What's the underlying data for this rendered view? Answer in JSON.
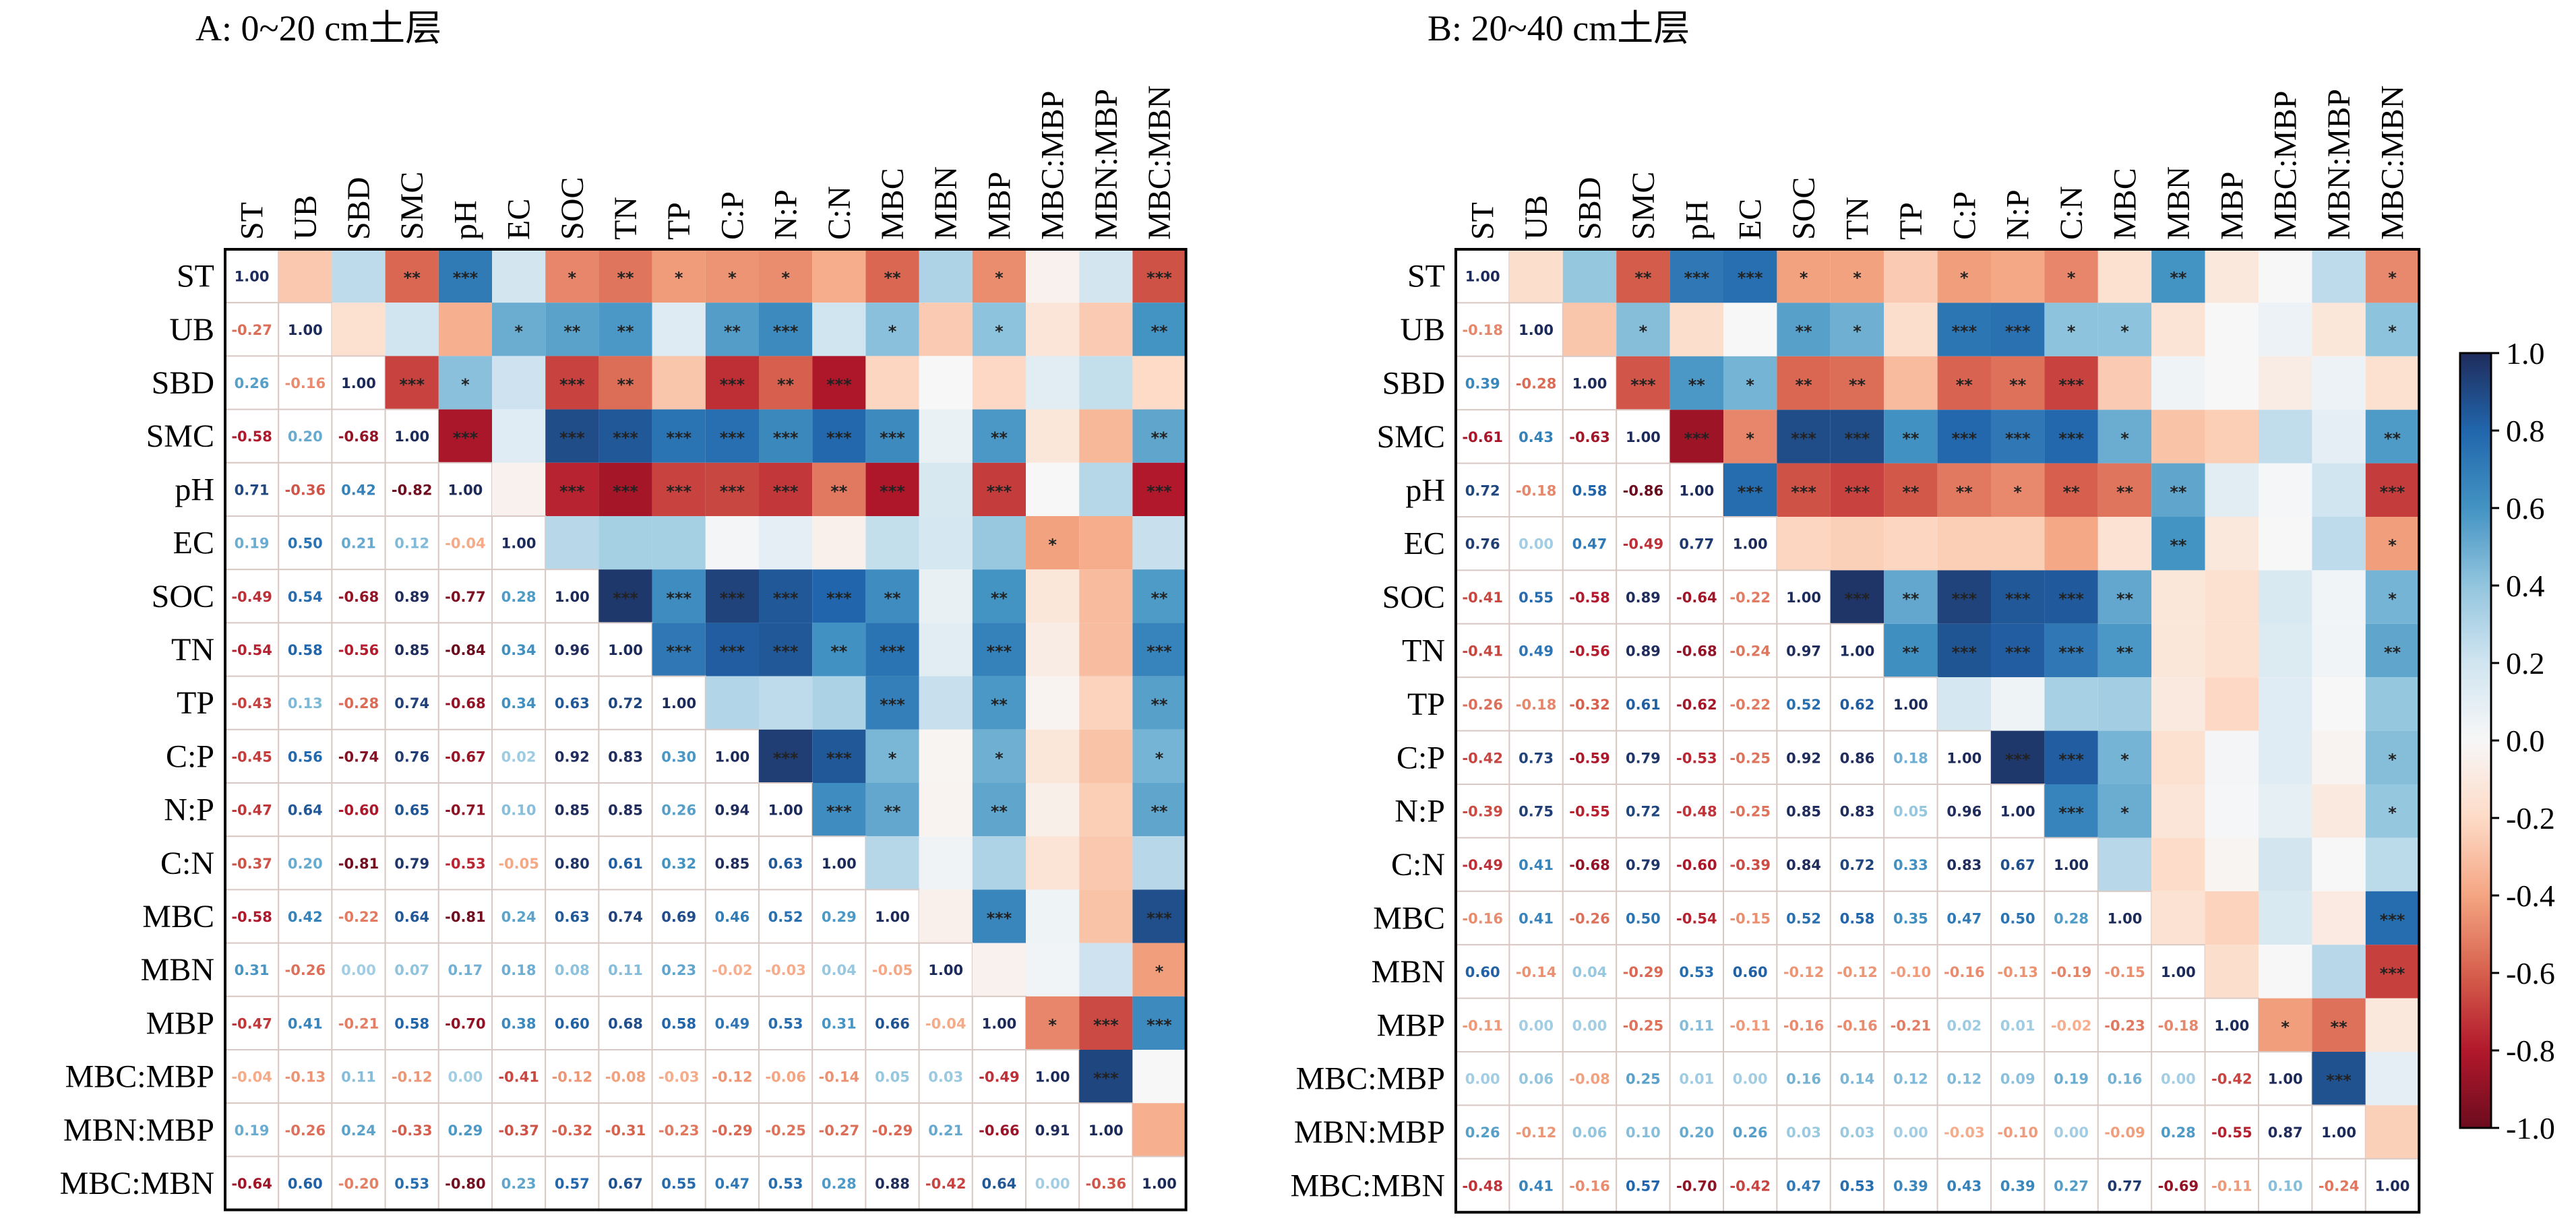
{
  "chart_data": [
    {
      "type": "heatmap",
      "title": "A: 0~20 cm土层",
      "variables": [
        "ST",
        "UB",
        "SBD",
        "SMC",
        "pH",
        "EC",
        "SOC",
        "TN",
        "TP",
        "C:P",
        "N:P",
        "C:N",
        "MBC",
        "MBN",
        "MBP",
        "MBC:MBP",
        "MBN:MBP",
        "MBC:MBN"
      ],
      "lower_triangle_values": [
        [
          1.0
        ],
        [
          -0.27,
          1.0
        ],
        [
          0.26,
          -0.16,
          1.0
        ],
        [
          -0.58,
          0.2,
          -0.68,
          1.0
        ],
        [
          0.71,
          -0.36,
          0.42,
          -0.82,
          1.0
        ],
        [
          0.19,
          0.5,
          0.21,
          0.12,
          -0.04,
          1.0
        ],
        [
          -0.49,
          0.54,
          -0.68,
          0.89,
          -0.77,
          0.28,
          1.0
        ],
        [
          -0.54,
          0.58,
          -0.56,
          0.85,
          -0.84,
          0.34,
          0.96,
          1.0
        ],
        [
          -0.43,
          0.13,
          -0.28,
          0.74,
          -0.68,
          0.34,
          0.63,
          0.72,
          1.0
        ],
        [
          -0.45,
          0.56,
          -0.74,
          0.76,
          -0.67,
          0.02,
          0.92,
          0.83,
          0.3,
          1.0
        ],
        [
          -0.47,
          0.64,
          -0.6,
          0.65,
          -0.71,
          0.1,
          0.85,
          0.85,
          0.26,
          0.94,
          1.0
        ],
        [
          -0.37,
          0.2,
          -0.81,
          0.79,
          -0.53,
          -0.05,
          0.8,
          0.61,
          0.32,
          0.85,
          0.63,
          1.0
        ],
        [
          -0.58,
          0.42,
          -0.22,
          0.64,
          -0.81,
          0.24,
          0.63,
          0.74,
          0.69,
          0.46,
          0.52,
          0.29,
          1.0
        ],
        [
          0.31,
          -0.26,
          0.0,
          0.07,
          0.17,
          0.18,
          0.08,
          0.11,
          0.23,
          -0.02,
          -0.03,
          0.04,
          -0.05,
          1.0
        ],
        [
          -0.47,
          0.41,
          -0.21,
          0.58,
          -0.7,
          0.38,
          0.6,
          0.68,
          0.58,
          0.49,
          0.53,
          0.31,
          0.66,
          -0.04,
          1.0
        ],
        [
          -0.04,
          -0.13,
          0.11,
          -0.12,
          0.0,
          -0.41,
          -0.12,
          -0.08,
          -0.03,
          -0.12,
          -0.06,
          -0.14,
          0.05,
          0.03,
          -0.49,
          1.0
        ],
        [
          0.19,
          -0.26,
          0.24,
          -0.33,
          0.29,
          -0.37,
          -0.32,
          -0.31,
          -0.23,
          -0.29,
          -0.25,
          -0.27,
          -0.29,
          0.21,
          -0.66,
          0.91,
          1.0
        ],
        [
          -0.64,
          0.6,
          -0.2,
          0.53,
          -0.8,
          0.23,
          0.57,
          0.67,
          0.55,
          0.47,
          0.53,
          0.28,
          0.88,
          -0.42,
          0.64,
          0.0,
          -0.36,
          1.0
        ]
      ],
      "upper_triangle_significance": [
        [
          "",
          "",
          "**",
          "***",
          "",
          "*",
          "**",
          "*",
          "*",
          "*",
          "",
          "**",
          "",
          "*",
          "",
          "",
          "***"
        ],
        [
          "",
          "",
          "",
          "*",
          "**",
          "**",
          "",
          "**",
          "***",
          "",
          "*",
          "",
          "*",
          "",
          "",
          "**"
        ],
        [
          "***",
          "*",
          "",
          "***",
          "**",
          "",
          "***",
          "**",
          "***",
          "",
          "",
          "",
          "",
          "",
          ""
        ],
        [
          "***",
          "",
          "***",
          "***",
          "***",
          "***",
          "***",
          "***",
          "***",
          "",
          "**",
          "",
          "",
          "**"
        ],
        [
          "",
          "***",
          "***",
          "***",
          "***",
          "***",
          "**",
          "***",
          "",
          "***",
          "",
          "",
          "***"
        ],
        [
          "",
          "",
          "",
          "",
          "",
          "",
          "",
          "",
          "",
          "*",
          "",
          ""
        ],
        [
          "***",
          "***",
          "***",
          "***",
          "***",
          "**",
          "",
          "**",
          "",
          "",
          "**"
        ],
        [
          "***",
          "***",
          "***",
          "**",
          "***",
          "",
          "***",
          "",
          "",
          "***"
        ],
        [
          "",
          "",
          "",
          "***",
          "",
          "**",
          "",
          "",
          "**"
        ],
        [
          "***",
          "***",
          "*",
          "",
          "*",
          "",
          "",
          "*"
        ],
        [
          "***",
          "**",
          "",
          "**",
          "",
          "",
          "**"
        ],
        [
          "",
          "",
          "",
          "",
          "",
          ""
        ],
        [
          "",
          "***",
          "",
          "",
          "***"
        ],
        [
          "",
          "",
          "",
          "*"
        ],
        [
          "*",
          "***",
          "***"
        ],
        [
          "***",
          ""
        ],
        [
          ""
        ]
      ],
      "upper_triangle_r": [
        [
          -0.27,
          0.26,
          -0.58,
          0.71,
          0.19,
          -0.49,
          -0.54,
          -0.43,
          -0.45,
          -0.47,
          -0.37,
          -0.58,
          0.31,
          -0.47,
          -0.04,
          0.19,
          -0.64
        ],
        [
          -0.16,
          0.2,
          -0.36,
          0.5,
          0.54,
          0.58,
          0.13,
          0.56,
          0.64,
          0.2,
          0.42,
          -0.26,
          0.41,
          -0.13,
          -0.26,
          0.6
        ],
        [
          -0.68,
          0.42,
          0.21,
          -0.68,
          -0.56,
          -0.28,
          -0.74,
          -0.6,
          -0.81,
          -0.22,
          0.0,
          -0.21,
          0.11,
          0.24,
          -0.2
        ],
        [
          -0.82,
          0.12,
          0.89,
          0.85,
          0.74,
          0.76,
          0.65,
          0.79,
          0.64,
          0.07,
          0.58,
          -0.12,
          -0.33,
          0.53
        ],
        [
          -0.04,
          -0.77,
          -0.84,
          -0.68,
          -0.67,
          -0.71,
          -0.53,
          -0.81,
          0.17,
          -0.7,
          0.0,
          0.29,
          -0.8
        ],
        [
          0.28,
          0.34,
          0.34,
          0.02,
          0.1,
          -0.05,
          0.24,
          0.18,
          0.38,
          -0.41,
          -0.37,
          0.23
        ],
        [
          0.96,
          0.63,
          0.92,
          0.85,
          0.8,
          0.63,
          0.08,
          0.6,
          -0.12,
          -0.32,
          0.57
        ],
        [
          0.72,
          0.83,
          0.85,
          0.61,
          0.74,
          0.11,
          0.68,
          -0.08,
          -0.31,
          0.67
        ],
        [
          0.3,
          0.26,
          0.32,
          0.69,
          0.23,
          0.58,
          -0.03,
          -0.23,
          0.55
        ],
        [
          0.94,
          0.85,
          0.46,
          -0.02,
          0.49,
          -0.12,
          -0.29,
          0.47
        ],
        [
          0.63,
          0.52,
          -0.03,
          0.53,
          -0.06,
          -0.25,
          0.53
        ],
        [
          0.29,
          0.04,
          0.31,
          -0.14,
          -0.27,
          0.28
        ],
        [
          -0.05,
          0.66,
          0.05,
          -0.29,
          0.88
        ],
        [
          -0.04,
          0.03,
          0.21,
          -0.42
        ],
        [
          -0.49,
          -0.66,
          0.64
        ],
        [
          0.91,
          0.0
        ],
        [
          -0.36
        ]
      ]
    },
    {
      "type": "heatmap",
      "title": "B: 20~40 cm土层",
      "variables": [
        "ST",
        "UB",
        "SBD",
        "SMC",
        "pH",
        "EC",
        "SOC",
        "TN",
        "TP",
        "C:P",
        "N:P",
        "C:N",
        "MBC",
        "MBN",
        "MBP",
        "MBC:MBP",
        "MBN:MBP",
        "MBC:MBN"
      ],
      "lower_triangle_values": [
        [
          1.0
        ],
        [
          -0.18,
          1.0
        ],
        [
          0.39,
          -0.28,
          1.0
        ],
        [
          -0.61,
          0.43,
          -0.63,
          1.0
        ],
        [
          0.72,
          -0.18,
          0.58,
          -0.86,
          1.0
        ],
        [
          0.76,
          0.0,
          0.47,
          -0.49,
          0.77,
          1.0
        ],
        [
          -0.41,
          0.55,
          -0.58,
          0.89,
          -0.64,
          -0.22,
          1.0
        ],
        [
          -0.41,
          0.49,
          -0.56,
          0.89,
          -0.68,
          -0.24,
          0.97,
          1.0
        ],
        [
          -0.26,
          -0.18,
          -0.32,
          0.61,
          -0.62,
          -0.22,
          0.52,
          0.62,
          1.0
        ],
        [
          -0.42,
          0.73,
          -0.59,
          0.79,
          -0.53,
          -0.25,
          0.92,
          0.86,
          0.18,
          1.0
        ],
        [
          -0.39,
          0.75,
          -0.55,
          0.72,
          -0.48,
          -0.25,
          0.85,
          0.83,
          0.05,
          0.96,
          1.0
        ],
        [
          -0.49,
          0.41,
          -0.68,
          0.79,
          -0.6,
          -0.39,
          0.84,
          0.72,
          0.33,
          0.83,
          0.67,
          1.0
        ],
        [
          -0.16,
          0.41,
          -0.26,
          0.5,
          -0.54,
          -0.15,
          0.52,
          0.58,
          0.35,
          0.47,
          0.5,
          0.28,
          1.0
        ],
        [
          0.6,
          -0.14,
          0.04,
          -0.29,
          0.53,
          0.6,
          -0.12,
          -0.12,
          -0.1,
          -0.16,
          -0.13,
          -0.19,
          -0.15,
          1.0
        ],
        [
          -0.11,
          0.0,
          0.0,
          -0.25,
          0.11,
          -0.11,
          -0.16,
          -0.16,
          -0.21,
          0.02,
          0.01,
          -0.02,
          -0.23,
          -0.18,
          1.0
        ],
        [
          0.0,
          0.06,
          -0.08,
          0.25,
          0.01,
          0.0,
          0.16,
          0.14,
          0.12,
          0.12,
          0.09,
          0.19,
          0.16,
          0.0,
          -0.42,
          1.0
        ],
        [
          0.26,
          -0.12,
          0.06,
          0.1,
          0.2,
          0.26,
          0.03,
          0.03,
          0.0,
          -0.03,
          -0.1,
          0.0,
          -0.09,
          0.28,
          -0.55,
          0.87,
          1.0
        ],
        [
          -0.48,
          0.41,
          -0.16,
          0.57,
          -0.7,
          -0.42,
          0.47,
          0.53,
          0.39,
          0.43,
          0.39,
          0.27,
          0.77,
          -0.69,
          -0.11,
          0.1,
          -0.24,
          1.0
        ]
      ],
      "upper_triangle_significance": [
        [
          "",
          "",
          "**",
          "***",
          "***",
          "*",
          "*",
          "",
          "*",
          "",
          "*",
          "",
          "**",
          "",
          "",
          "",
          "*"
        ],
        [
          "",
          "*",
          "",
          "",
          "**",
          "*",
          "",
          "***",
          "***",
          "*",
          "*",
          "",
          "",
          "",
          "",
          "*"
        ],
        [
          "***",
          "**",
          "*",
          "**",
          "**",
          "",
          "**",
          "**",
          "***",
          "",
          "",
          "",
          "",
          "",
          ""
        ],
        [
          "***",
          "*",
          "***",
          "***",
          "**",
          "***",
          "***",
          "***",
          "*",
          "",
          "",
          "",
          "",
          "**"
        ],
        [
          "***",
          "***",
          "***",
          "**",
          "**",
          "*",
          "**",
          "**",
          "**",
          "",
          "",
          "",
          "***"
        ],
        [
          "",
          "",
          "",
          "",
          "",
          "",
          "",
          "**",
          "",
          "",
          "",
          "*"
        ],
        [
          "***",
          "**",
          "***",
          "***",
          "***",
          "**",
          "",
          "",
          "",
          "",
          "*"
        ],
        [
          "**",
          "***",
          "***",
          "***",
          "**",
          "",
          "",
          "",
          "",
          "**"
        ],
        [
          "",
          "",
          "",
          "",
          "",
          "",
          "",
          "",
          ""
        ],
        [
          "***",
          "***",
          "*",
          "",
          "",
          "",
          "",
          "*"
        ],
        [
          "***",
          "*",
          "",
          "",
          "",
          "",
          "*"
        ],
        [
          "",
          "",
          "",
          "",
          "",
          ""
        ],
        [
          "",
          "",
          "",
          "",
          "***"
        ],
        [
          "",
          "",
          "",
          "***"
        ],
        [
          "*",
          "**",
          ""
        ],
        [
          "***",
          ""
        ],
        [
          ""
        ]
      ],
      "upper_triangle_r": [
        [
          -0.18,
          0.39,
          -0.61,
          0.72,
          0.76,
          -0.41,
          -0.41,
          -0.26,
          -0.42,
          -0.39,
          -0.49,
          -0.16,
          0.6,
          -0.11,
          0.0,
          0.26,
          -0.48
        ],
        [
          -0.28,
          0.43,
          -0.18,
          0.0,
          0.55,
          0.49,
          -0.18,
          0.73,
          0.75,
          0.41,
          0.41,
          -0.14,
          0.0,
          0.06,
          -0.12,
          0.41
        ],
        [
          -0.63,
          0.58,
          0.47,
          -0.58,
          -0.56,
          -0.32,
          -0.59,
          -0.55,
          -0.68,
          -0.26,
          0.04,
          0.0,
          -0.08,
          0.06,
          -0.16
        ],
        [
          -0.86,
          -0.49,
          0.89,
          0.89,
          0.61,
          0.79,
          0.72,
          0.79,
          0.5,
          -0.29,
          -0.25,
          0.25,
          0.1,
          0.57
        ],
        [
          0.77,
          -0.64,
          -0.68,
          -0.62,
          -0.53,
          -0.48,
          -0.6,
          -0.54,
          0.53,
          0.11,
          0.01,
          0.2,
          -0.7
        ],
        [
          -0.22,
          -0.24,
          -0.22,
          -0.25,
          -0.25,
          -0.39,
          -0.15,
          0.6,
          -0.11,
          0.0,
          0.26,
          -0.42
        ],
        [
          0.97,
          0.52,
          0.92,
          0.85,
          0.84,
          0.52,
          -0.12,
          -0.16,
          0.16,
          0.03,
          0.47
        ],
        [
          0.62,
          0.86,
          0.83,
          0.72,
          0.58,
          -0.12,
          -0.16,
          0.14,
          0.03,
          0.53
        ],
        [
          0.18,
          0.05,
          0.33,
          0.35,
          -0.1,
          -0.21,
          0.12,
          0.0,
          0.39
        ],
        [
          0.96,
          0.83,
          0.47,
          -0.16,
          0.02,
          0.12,
          -0.03,
          0.43
        ],
        [
          0.67,
          0.5,
          -0.13,
          0.01,
          0.09,
          -0.1,
          0.39
        ],
        [
          0.28,
          -0.19,
          -0.02,
          0.19,
          0.0,
          0.27
        ],
        [
          -0.15,
          -0.23,
          0.16,
          -0.09,
          0.77
        ],
        [
          -0.18,
          0.0,
          0.28,
          -0.69
        ],
        [
          -0.42,
          -0.55,
          -0.11
        ],
        [
          0.87,
          0.1
        ],
        [
          -0.24
        ]
      ]
    }
  ],
  "colorbar": {
    "ticks": [
      "1.0",
      "0.8",
      "0.6",
      "0.4",
      "0.2",
      "0.0",
      "-0.2",
      "-0.4",
      "-0.6",
      "-0.8",
      "-1.0"
    ],
    "range": [
      -1,
      1
    ],
    "colors": {
      "negative": "#6b0c1e",
      "zero": "#f7f7f7",
      "positive": "#1f2c5c"
    }
  }
}
